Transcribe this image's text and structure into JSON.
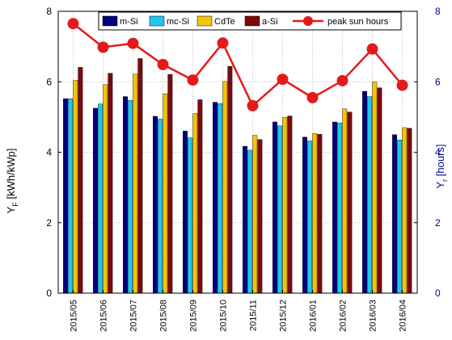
{
  "chart_data": {
    "type": "bar",
    "categories": [
      "2015/05",
      "2015/06",
      "2015/07",
      "2015/08",
      "2015/09",
      "2015/10",
      "2015/11",
      "2015/12",
      "2016/01",
      "2016/02",
      "2016/03",
      "2016/04"
    ],
    "series": [
      {
        "name": "m-Si",
        "color": "#00007f",
        "values": [
          5.52,
          5.25,
          5.58,
          5.02,
          4.6,
          5.42,
          4.17,
          4.86,
          4.43,
          4.86,
          5.73,
          4.5
        ]
      },
      {
        "name": "mc-Si",
        "color": "#1ec8f0",
        "values": [
          5.52,
          5.37,
          5.47,
          4.94,
          4.41,
          5.38,
          4.06,
          4.75,
          4.32,
          4.83,
          5.58,
          4.35
        ]
      },
      {
        "name": "CdTe",
        "color": "#f5c400",
        "values": [
          6.04,
          5.92,
          6.22,
          5.66,
          5.1,
          6.01,
          4.48,
          4.99,
          4.53,
          5.23,
          6.0,
          4.7
        ]
      },
      {
        "name": "a-Si",
        "color": "#7a0a0a",
        "values": [
          6.41,
          6.24,
          6.66,
          6.21,
          5.49,
          6.44,
          4.36,
          5.03,
          4.51,
          5.14,
          5.83,
          4.68
        ]
      }
    ],
    "line_series": {
      "name": "peak sun hours",
      "color": "#e31a1c",
      "axis": "right",
      "values": [
        7.65,
        6.98,
        7.09,
        6.49,
        6.05,
        7.1,
        5.32,
        6.07,
        5.55,
        6.03,
        6.93,
        5.9
      ]
    },
    "ylabel_left": {
      "main": "Y",
      "sub": "F",
      "rest": " [kWh/kWp]"
    },
    "ylabel_right": {
      "main": "Y",
      "sub": "r",
      "rest": " [hours]"
    },
    "ylim": [
      0,
      8
    ],
    "y2lim": [
      0,
      8
    ],
    "yticks": [
      "0",
      "2",
      "4",
      "6",
      "8"
    ],
    "y2ticks": [
      "0",
      "2",
      "4",
      "6",
      "8"
    ],
    "grid": true,
    "legend_position": "top"
  }
}
